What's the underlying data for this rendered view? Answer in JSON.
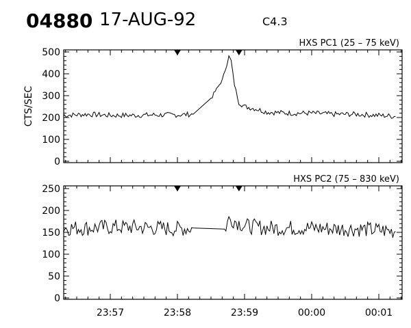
{
  "header": {
    "event_id": "04880",
    "date": "17-AUG-92",
    "goes_class": "C4.3"
  },
  "chart_data": [
    {
      "type": "line",
      "title": "HXS PC1 (25 – 75 keV)",
      "ylabel": "CTS/SEC",
      "ylim": [
        0,
        500
      ],
      "yticks": [
        0,
        100,
        200,
        300,
        400,
        500
      ],
      "xtick_labels": [
        "23:57",
        "23:58",
        "23:59",
        "00:00",
        "00:01"
      ],
      "markers_at": [
        "23:58",
        "23:58:55"
      ],
      "series": [
        {
          "x": [
            "23:56:18",
            "23:56:40",
            "23:57:00",
            "23:57:20",
            "23:57:40",
            "23:58:00",
            "23:58:14",
            "23:58:30",
            "23:58:40",
            "23:58:44",
            "23:58:46",
            "23:58:48",
            "23:58:51",
            "23:58:55",
            "23:59:00",
            "23:59:10",
            "23:59:20",
            "23:59:40",
            "00:00:00",
            "00:00:20",
            "00:00:40",
            "00:01:00",
            "00:01:15"
          ],
          "y": [
            210,
            215,
            210,
            210,
            212,
            212,
            215,
            290,
            370,
            440,
            480,
            460,
            350,
            270,
            250,
            240,
            225,
            220,
            220,
            215,
            215,
            210,
            205
          ],
          "noise": 12
        }
      ]
    },
    {
      "type": "line",
      "title": "HXS PC2 (75 – 830 keV)",
      "ylabel": "",
      "ylim": [
        0,
        250
      ],
      "yticks": [
        0,
        50,
        100,
        150,
        200,
        250
      ],
      "xtick_labels": [
        "23:57",
        "23:58",
        "23:59",
        "00:00",
        "00:01"
      ],
      "markers_at": [
        "23:58",
        "23:58:55"
      ],
      "series": [
        {
          "x": [
            "23:56:18",
            "23:56:40",
            "23:57:00",
            "23:57:20",
            "23:57:40",
            "23:58:00",
            "23:58:14",
            "23:58:42",
            "23:58:46",
            "23:58:50",
            "23:59:00",
            "23:59:20",
            "23:59:40",
            "00:00:00",
            "00:00:20",
            "00:00:40",
            "00:01:00",
            "00:01:15"
          ],
          "y": [
            160,
            160,
            162,
            162,
            160,
            158,
            160,
            155,
            180,
            178,
            165,
            160,
            160,
            160,
            158,
            158,
            155,
            152
          ],
          "noise": 18
        }
      ]
    }
  ]
}
